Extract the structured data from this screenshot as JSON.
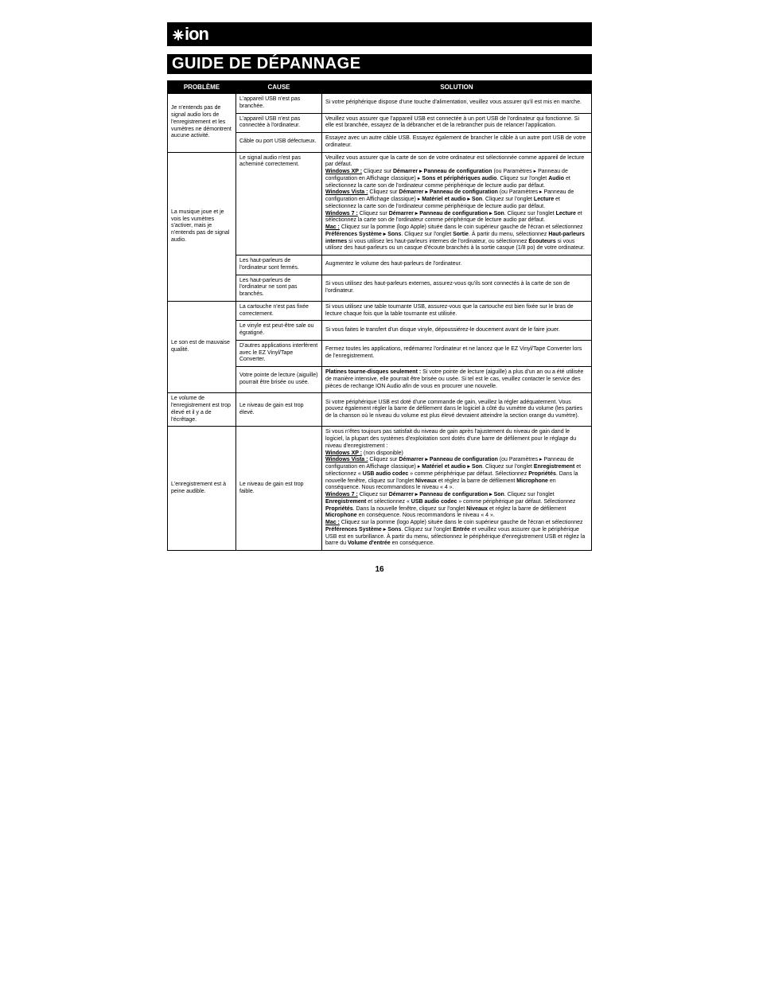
{
  "logo_text": "ion",
  "title": "GUIDE DE DÉPANNAGE",
  "headers": {
    "problem": "PROBLÈME",
    "cause": "CAUSE",
    "solution": "SOLUTION"
  },
  "page_number": "16",
  "p1": {
    "problem": "Je n'entends pas de signal audio lors de l'enregistrement et les vumètres ne démontrent aucune activité.",
    "cause1": "L'appareil USB n'est pas branchée.",
    "sol1": "Si votre périphérique dispose d'une touche d'alimentation, veuillez vous assurer qu'il est mis en marche.",
    "cause2": "L'appareil USB n'est pas connectée à l'ordinateur.",
    "sol2": "Veuillez vous assurer que l'appareil USB est connectée à un port USB de l'ordinateur qui fonctionne.  Si elle est branchée, essayez de la débrancher et de la rebrancher puis de relancer l'application.",
    "cause3": "Câble ou port USB défectueux.",
    "sol3": "Essayez avec un autre câble USB.  Essayez également de brancher le câble à un autre port USB de votre ordinateur."
  },
  "p2": {
    "problem": "La musique joue et je vois les vumètres s'activer, mais je n'entends pas de signal audio.",
    "cause1": "Le signal audio n'est pas acheminé correctement.",
    "cause2": "Les haut-parleurs de l'ordinateur sont fermés.",
    "sol2": "Augmentez le volume des haut-parleurs de l'ordinateur.",
    "cause3": "Les haut-parleurs de l'ordinateur ne sont pas branchés.",
    "sol3": "Si vous utilisez des haut-parleurs externes, assurez-vous qu'ils sont connectés à la carte de son de l'ordinateur."
  },
  "p3": {
    "problem": "Le son est de mauvaise qualité.",
    "cause1": "La cartouche n'est pas fixée correctement.",
    "sol1": "Si vous utilisez une table tournante USB, assurez-vous que la cartouche est bien fixée sur le bras de lecture chaque fois que la table tournante est utilisée.",
    "cause2": "Le vinyle est peut-être sale ou égratigné.",
    "sol2": "Si vous faites le transfert d'un disque vinyle, dépoussiérez-le doucement avant de le faire jouer.",
    "cause3": "D'autres applications interfèrent avec le EZ Vinyl/Tape Converter.",
    "sol3": "Fermez toutes les applications, redémarrez l'ordinateur et ne lancez que le EZ Vinyl/Tape Converter lors de l'enregistrement.",
    "cause4": "Votre pointe de lecture (aiguille) pourrait être brisée ou usée."
  },
  "p4": {
    "problem": "Le volume de l'enregistrement est trop élevé et il y a de l'écrêtage.",
    "cause": "Le niveau de gain est trop élevé."
  },
  "p5": {
    "problem": "L'enregistrement est à peine audible.",
    "cause": "Le niveau de gain est trop faible."
  },
  "sol_html": {
    "p2_sol1": "Veuillez vous assurer que la carte de son de votre ordinateur est sélectionnée comme appareil de lecture par défaut.<br><span class='u b'>Windows XP :</span> Cliquez sur <b>Démarrer ▸ Panneau de configuration</b> (ou Paramètres ▸ Panneau de configuration en Affichage classique) ▸ <b>Sons et périphériques audio</b>. Cliquez sur l'onglet <b>Audio</b> et sélectionnez la carte son de l'ordinateur comme périphérique de lecture audio par défaut.<br><span class='u b'>Windows Vista :</span> Cliquez sur <b>Démarrer ▸ Panneau de configuration</b> (ou Paramètres ▸ Panneau de configuration en Affichage classique) ▸ <b>Matériel et audio ▸ Son</b>. Cliquez sur l'onglet <b>Lecture</b> et sélectionnez la carte son de l'ordinateur comme périphérique de lecture audio par défaut.<br><span class='u b'>Windows 7 :</span> Cliquez sur <b>Démarrer ▸ Panneau de configuration ▸ Son</b>. Cliquez sur l'onglet <b>Lecture</b> et sélectionnez la carte son de l'ordinateur comme périphérique de lecture audio par défaut.<br><span class='u b'>Mac :</span> Cliquez sur la pomme (logo Apple) située dans le coin supérieur gauche de l'écran et sélectionnez <b>Préférences Système ▸ Sons</b>. Cliquez sur l'onglet <b>Sortie</b>. À partir du menu, sélectionnez <b>Haut-parleurs internes</b> si vous utilisez les haut-parleurs internes de l'ordinateur, ou sélectionnez <b>Écouteurs</b> si vous utilisez des haut-parleurs ou un casque d'écoute branchés à la sortie casque (1/8 po) de votre ordinateur.",
    "p3_sol4": "<b>Platines tourne-disques seulement :</b> Si votre pointe de lecture (aiguille) a plus d'un an ou a été utilisée de manière intensive, elle pourrait être brisée ou usée. Si tel est le cas, veuillez contacter le service des pièces de rechange ION Audio afin de vous en procurer une nouvelle.",
    "p4_sol": "Si votre périphérique USB est doté d'une commande de gain, veuillez la régler adéquatement. Vous pouvez également régler la barre de défilement dans le logiciel à côté du vumètre du volume (les parties de la chanson où le niveau du volume est plus élevé devraient atteindre la section orange du vumètre).",
    "p5_sol": "Si vous n'êtes toujours pas satisfait du niveau de gain après l'ajustement du niveau de gain dand le logiciel, la plupart des systèmes d'exploitation sont dotés d'une barre de défilement pour le réglage du niveau d'enregistrement :<br><span class='u b'>Windows XP :</span> (non disponible)<br><span class='u b'>Windows Vista :</span> Cliquez sur <b>Démarrer ▸ Panneau de configuration</b> (ou Paramètres ▸ Panneau de configuration en Affichage classique) ▸ <b>Matériel et audio ▸ Son</b>. Cliquez sur l'onglet <b>Enregistrement</b> et sélectionnez « <b>USB audio codec</b> » comme périphérique par défaut. Sélectionnez <b>Propriétés</b>. Dans la nouvelle fenêtre, cliquez sur l'onglet <b>Niveaux</b> et réglez la barre de défilement <b>Microphone</b> en conséquence. Nous recommandons le niveau « 4 ».<br><span class='u b'>Windows 7 :</span> Cliquez sur <b>Démarrer ▸ Panneau de configuration ▸ Son</b>. Cliquez sur l'onglet <b>Enregistrement</b> et sélectionnez « <b>USB audio codec</b> » comme périphérique par défaut. Sélectionnez <b>Propriétés</b>. Dans la nouvelle fenêtre, cliquez sur l'onglet <b>Niveaux</b> et réglez la barre de défilement <b>Microphone</b> en conséquence. Nous recommandons le niveau « 4 ».<br><span class='u b'>Mac :</span> Cliquez sur la pomme (logo Apple) située dans le coin supérieur gauche de l'écran et sélectionnez <b>Préférences Système ▸ Sons</b>. Cliquez sur l'onglet <b>Entrée</b> et veuillez vous assurer que le périphérique USB est en surbrillance. À partir du menu, sélectionnez le périphérique d'enregistrement USB et réglez la barre du <b>Volume d'entrée</b> en conséquence."
  }
}
